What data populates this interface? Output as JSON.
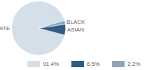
{
  "chart_data": {
    "type": "pie",
    "categories": [
      "WHITE",
      "ASIAN",
      "BLACK"
    ],
    "values": [
      91.4,
      6.5,
      2.2
    ],
    "value_labels": [
      "91.4%",
      "6.5%",
      "2.2%"
    ],
    "colors": [
      "#d5dfe9",
      "#2f5d86",
      "#8da6bd"
    ],
    "legend": "bottom"
  }
}
